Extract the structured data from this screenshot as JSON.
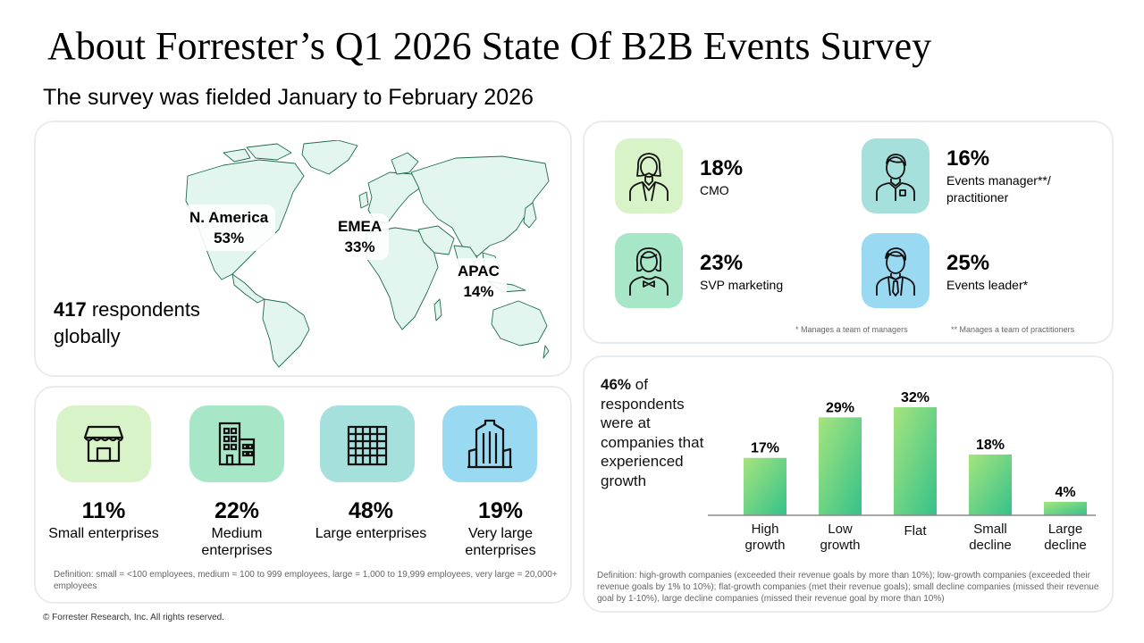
{
  "header": {
    "title": "About Forrester’s Q1 2026 State Of B2B Events Survey",
    "subtitle": "The survey was fielded January to February 2026"
  },
  "regions": {
    "na": {
      "name": "N. America",
      "pct": "53%"
    },
    "emea": {
      "name": "EMEA",
      "pct": "33%"
    },
    "apac": {
      "name": "APAC",
      "pct": "14%"
    }
  },
  "respondents": {
    "count": "417",
    "text": "respondents globally"
  },
  "company_size": {
    "items": [
      {
        "pct": "11%",
        "label": "Small enterprises",
        "icon": "storefront-icon",
        "color": "#d8f3c8"
      },
      {
        "pct": "22%",
        "label": "Medium enterprises",
        "icon": "office-building-icon",
        "color": "#a8e6c8"
      },
      {
        "pct": "48%",
        "label": "Large enterprises",
        "icon": "large-building-icon",
        "color": "#a6e0dc"
      },
      {
        "pct": "19%",
        "label": "Very large enterprises",
        "icon": "skyscraper-icon",
        "color": "#9ad9f2"
      }
    ],
    "definition": "Definition: small = <100 employees, medium = 100 to 999 employees, large = 1,000 to 19,999 employees, very large = 20,000+ employees"
  },
  "roles": {
    "items": [
      {
        "pct": "18%",
        "label": "CMO",
        "icon": "person-suit-icon",
        "color": "#d8f3c8"
      },
      {
        "pct": "16%",
        "label": "Events manager**/ practitioner",
        "icon": "person-shirt-icon",
        "color": "#a6e0dc"
      },
      {
        "pct": "23%",
        "label": "SVP marketing",
        "icon": "person-bowtie-icon",
        "color": "#a8e6c8"
      },
      {
        "pct": "25%",
        "label": "Events leader*",
        "icon": "person-tie-icon",
        "color": "#9ad9f2"
      }
    ],
    "note1": "* Manages a team of managers",
    "note2": "** Manages a team of practitioners"
  },
  "growth": {
    "highlight": "46%",
    "text": "of respondents were at companies that experienced growth",
    "definition": "Definition: high-growth companies (exceeded their revenue goals by more than 10%); low-growth companies (exceeded their revenue goals by 1% to 10%); flat-growth companies (met their revenue goals); small decline companies (missed their revenue goal by 1-10%), large decline companies (missed their revenue goal by more than 10%)"
  },
  "chart_data": {
    "type": "bar",
    "categories": [
      "High growth",
      "Low growth",
      "Flat",
      "Small decline",
      "Large decline"
    ],
    "values": [
      17,
      29,
      32,
      18,
      4
    ],
    "value_labels": [
      "17%",
      "29%",
      "32%",
      "18%",
      "4%"
    ],
    "ylim": [
      0,
      32
    ],
    "colors": [
      "#a6e47e",
      "#34c28a"
    ]
  },
  "footer": {
    "copyright": "© Forrester Research, Inc. All rights reserved."
  }
}
